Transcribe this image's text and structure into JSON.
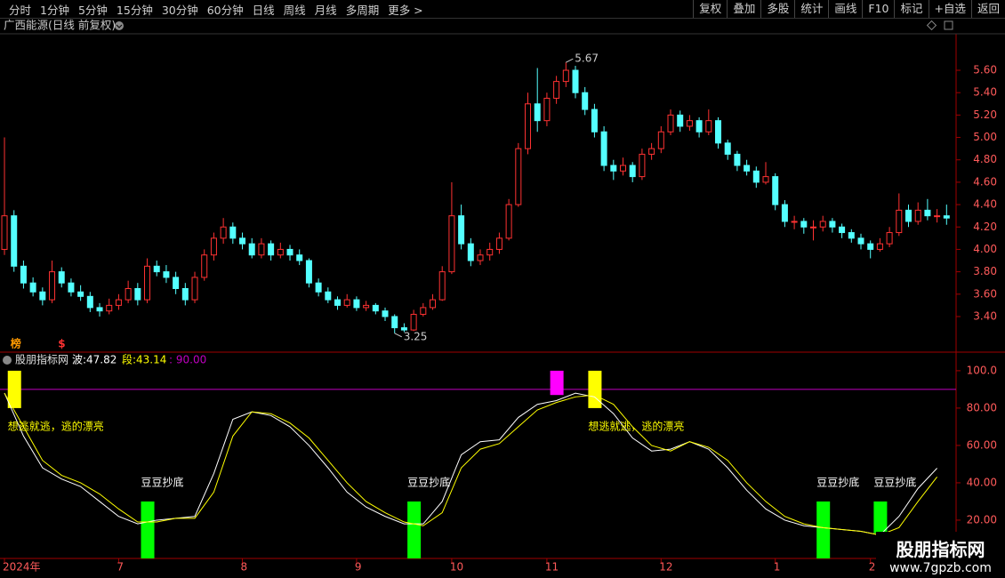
{
  "toolbar": {
    "periods": [
      "分时",
      "1分钟",
      "5分钟",
      "15分钟",
      "30分钟",
      "60分钟",
      "日线",
      "周线",
      "月线",
      "多周期",
      "更多 >"
    ],
    "tools": [
      "复权",
      "叠加",
      "多股",
      "统计",
      "画线",
      "F10",
      "标记",
      "+自选",
      "返回"
    ]
  },
  "watermark": {
    "title": "股朋指标网",
    "url": "www.7gpzb.com"
  },
  "chart_data": [
    {
      "type": "candlestick",
      "title": "广西能源(日线 前复权)",
      "up_color": "#ff3232",
      "down_color": "#54ffff",
      "xlim": [
        -0.47,
        100
      ],
      "ylim": [
        3.09,
        5.91
      ],
      "xticks": [
        {
          "value": 0,
          "label": "2024年"
        },
        {
          "value": 12,
          "label": "7"
        },
        {
          "value": 25,
          "label": "8"
        },
        {
          "value": 37,
          "label": "9"
        },
        {
          "value": 47,
          "label": "10"
        },
        {
          "value": 57,
          "label": "11"
        },
        {
          "value": 69,
          "label": "12"
        },
        {
          "value": 81,
          "label": "1"
        },
        {
          "value": 91,
          "label": "2"
        }
      ],
      "yticks": [
        {
          "value": 3.4,
          "label": "3.40"
        },
        {
          "value": 3.6,
          "label": "3.60"
        },
        {
          "value": 3.8,
          "label": "3.80"
        },
        {
          "value": 4,
          "label": "4.00"
        },
        {
          "value": 4.2,
          "label": "4.20"
        },
        {
          "value": 4.4,
          "label": "4.40"
        },
        {
          "value": 4.6,
          "label": "4.60"
        },
        {
          "value": 4.8,
          "label": "4.80"
        },
        {
          "value": 5,
          "label": "5.00"
        },
        {
          "value": 5.2,
          "label": "5.20"
        },
        {
          "value": 5.4,
          "label": "5.40"
        },
        {
          "value": 5.6,
          "label": "5.60"
        }
      ],
      "candles": [
        [
          4.0,
          5.0,
          3.95,
          4.3
        ],
        [
          4.3,
          4.35,
          3.8,
          3.85
        ],
        [
          3.85,
          3.9,
          3.65,
          3.7
        ],
        [
          3.7,
          3.75,
          3.58,
          3.62
        ],
        [
          3.62,
          3.66,
          3.5,
          3.55
        ],
        [
          3.55,
          3.9,
          3.52,
          3.8
        ],
        [
          3.8,
          3.84,
          3.66,
          3.7
        ],
        [
          3.7,
          3.74,
          3.58,
          3.62
        ],
        [
          3.62,
          3.68,
          3.54,
          3.58
        ],
        [
          3.58,
          3.62,
          3.44,
          3.48
        ],
        [
          3.48,
          3.52,
          3.4,
          3.45
        ],
        [
          3.45,
          3.56,
          3.42,
          3.5
        ],
        [
          3.5,
          3.6,
          3.46,
          3.55
        ],
        [
          3.55,
          3.72,
          3.52,
          3.65
        ],
        [
          3.65,
          3.7,
          3.5,
          3.55
        ],
        [
          3.55,
          3.92,
          3.52,
          3.85
        ],
        [
          3.85,
          3.9,
          3.76,
          3.8
        ],
        [
          3.8,
          3.86,
          3.7,
          3.75
        ],
        [
          3.75,
          3.8,
          3.6,
          3.65
        ],
        [
          3.65,
          3.7,
          3.5,
          3.55
        ],
        [
          3.55,
          3.8,
          3.52,
          3.75
        ],
        [
          3.75,
          4.0,
          3.72,
          3.95
        ],
        [
          3.95,
          4.15,
          3.9,
          4.1
        ],
        [
          4.1,
          4.28,
          4.05,
          4.2
        ],
        [
          4.2,
          4.24,
          4.05,
          4.1
        ],
        [
          4.1,
          4.15,
          4.0,
          4.05
        ],
        [
          4.05,
          4.1,
          3.92,
          3.95
        ],
        [
          3.95,
          4.1,
          3.92,
          4.05
        ],
        [
          4.05,
          4.08,
          3.9,
          3.95
        ],
        [
          3.95,
          4.06,
          3.92,
          4.0
        ],
        [
          4.0,
          4.04,
          3.9,
          3.95
        ],
        [
          3.95,
          4.0,
          3.86,
          3.9
        ],
        [
          3.9,
          3.92,
          3.66,
          3.7
        ],
        [
          3.7,
          3.74,
          3.58,
          3.62
        ],
        [
          3.62,
          3.66,
          3.52,
          3.55
        ],
        [
          3.55,
          3.58,
          3.46,
          3.5
        ],
        [
          3.5,
          3.6,
          3.48,
          3.55
        ],
        [
          3.55,
          3.58,
          3.45,
          3.48
        ],
        [
          3.48,
          3.54,
          3.45,
          3.5
        ],
        [
          3.5,
          3.52,
          3.42,
          3.45
        ],
        [
          3.45,
          3.48,
          3.36,
          3.4
        ],
        [
          3.4,
          3.42,
          3.25,
          3.3
        ],
        [
          3.3,
          3.34,
          3.26,
          3.28
        ],
        [
          3.28,
          3.46,
          3.27,
          3.42
        ],
        [
          3.42,
          3.52,
          3.4,
          3.48
        ],
        [
          3.48,
          3.6,
          3.46,
          3.55
        ],
        [
          3.55,
          3.85,
          3.54,
          3.8
        ],
        [
          3.8,
          4.6,
          3.78,
          4.3
        ],
        [
          4.3,
          4.4,
          4.0,
          4.05
        ],
        [
          4.05,
          4.1,
          3.85,
          3.9
        ],
        [
          3.9,
          4.0,
          3.86,
          3.95
        ],
        [
          3.95,
          4.06,
          3.9,
          4.0
        ],
        [
          4.0,
          4.15,
          3.96,
          4.1
        ],
        [
          4.1,
          4.45,
          4.08,
          4.4
        ],
        [
          4.4,
          4.95,
          4.38,
          4.9
        ],
        [
          4.9,
          5.4,
          4.85,
          5.3
        ],
        [
          5.3,
          5.62,
          5.05,
          5.15
        ],
        [
          5.15,
          5.4,
          5.1,
          5.35
        ],
        [
          5.35,
          5.55,
          5.3,
          5.5
        ],
        [
          5.5,
          5.67,
          5.45,
          5.6
        ],
        [
          5.6,
          5.64,
          5.35,
          5.4
        ],
        [
          5.4,
          5.45,
          5.2,
          5.25
        ],
        [
          5.25,
          5.3,
          5.0,
          5.05
        ],
        [
          5.05,
          5.1,
          4.7,
          4.75
        ],
        [
          4.75,
          4.8,
          4.62,
          4.7
        ],
        [
          4.7,
          4.82,
          4.66,
          4.75
        ],
        [
          4.75,
          4.78,
          4.6,
          4.65
        ],
        [
          4.65,
          4.9,
          4.62,
          4.85
        ],
        [
          4.85,
          4.95,
          4.8,
          4.9
        ],
        [
          4.9,
          5.1,
          4.86,
          5.05
        ],
        [
          5.05,
          5.25,
          5.02,
          5.2
        ],
        [
          5.2,
          5.24,
          5.05,
          5.1
        ],
        [
          5.1,
          5.2,
          5.06,
          5.15
        ],
        [
          5.15,
          5.18,
          5.0,
          5.05
        ],
        [
          5.05,
          5.25,
          5.02,
          5.15
        ],
        [
          5.15,
          5.18,
          4.9,
          4.95
        ],
        [
          4.95,
          4.98,
          4.8,
          4.85
        ],
        [
          4.85,
          4.88,
          4.7,
          4.75
        ],
        [
          4.75,
          4.8,
          4.66,
          4.7
        ],
        [
          4.7,
          4.74,
          4.55,
          4.6
        ],
        [
          4.6,
          4.78,
          4.58,
          4.65
        ],
        [
          4.65,
          4.68,
          4.35,
          4.4
        ],
        [
          4.4,
          4.44,
          4.2,
          4.25
        ],
        [
          4.25,
          4.3,
          4.18,
          4.25
        ],
        [
          4.25,
          4.28,
          4.14,
          4.2
        ],
        [
          4.2,
          4.26,
          4.08,
          4.2
        ],
        [
          4.2,
          4.3,
          4.16,
          4.25
        ],
        [
          4.25,
          4.28,
          4.15,
          4.2
        ],
        [
          4.2,
          4.23,
          4.1,
          4.15
        ],
        [
          4.15,
          4.18,
          4.06,
          4.1
        ],
        [
          4.1,
          4.14,
          4.0,
          4.05
        ],
        [
          4.05,
          4.08,
          3.92,
          4.0
        ],
        [
          4.0,
          4.1,
          3.98,
          4.05
        ],
        [
          4.05,
          4.2,
          4.02,
          4.15
        ],
        [
          4.15,
          4.5,
          4.12,
          4.35
        ],
        [
          4.35,
          4.4,
          4.2,
          4.25
        ],
        [
          4.25,
          4.42,
          4.22,
          4.35
        ],
        [
          4.35,
          4.45,
          4.26,
          4.3
        ],
        [
          4.3,
          4.36,
          4.24,
          4.3
        ],
        [
          4.3,
          4.4,
          4.22,
          4.28
        ]
      ],
      "markers": [
        {
          "x": 1,
          "text": "榜",
          "color": "#ff9900"
        },
        {
          "x": 6,
          "text": "$",
          "color": "#ff3232"
        }
      ]
    },
    {
      "type": "line",
      "title": "股朋指标网",
      "xlim": [
        -0.47,
        100
      ],
      "ylim": [
        -0.5,
        109
      ],
      "yticks": [
        {
          "value": 20,
          "label": "20.00"
        },
        {
          "value": 40,
          "label": "40.00"
        },
        {
          "value": 60,
          "label": "60.00"
        },
        {
          "value": 80,
          "label": "80.00"
        },
        {
          "value": 100,
          "label": "100.0"
        }
      ],
      "x": [
        0,
        2,
        4,
        6,
        8,
        10,
        12,
        14,
        16,
        18,
        20,
        22,
        24,
        26,
        28,
        30,
        32,
        34,
        36,
        38,
        40,
        42,
        44,
        46,
        48,
        50,
        52,
        54,
        56,
        58,
        60,
        62,
        64,
        66,
        68,
        70,
        72,
        74,
        76,
        78,
        80,
        82,
        84,
        86,
        88,
        90,
        92,
        94,
        96,
        98
      ],
      "series": [
        {
          "name": "波:",
          "color": "#ffffff",
          "values": [
            88,
            65,
            48,
            42,
            38,
            30,
            22,
            18,
            20,
            21,
            22,
            45,
            74,
            78,
            76,
            70,
            60,
            48,
            35,
            27,
            22,
            18,
            18,
            30,
            55,
            62,
            63,
            75,
            82,
            84,
            88,
            86,
            77,
            64,
            57,
            58,
            62,
            58,
            48,
            36,
            26,
            20,
            17,
            16,
            15,
            14,
            12,
            22,
            37,
            47.82
          ]
        },
        {
          "name": "段:",
          "color": "#ffff00",
          "values": [
            88,
            70,
            52,
            44,
            40,
            34,
            26,
            19,
            19,
            21,
            21,
            35,
            65,
            78,
            77,
            72,
            64,
            52,
            40,
            30,
            24,
            19,
            17,
            24,
            48,
            58,
            61,
            70,
            79,
            83,
            86,
            87,
            82,
            70,
            60,
            57,
            62,
            59,
            52,
            40,
            30,
            22,
            18,
            16,
            15,
            14,
            12,
            16,
            30,
            43.14
          ]
        }
      ],
      "reference_line": {
        "value": 90,
        "label": ": 90.00",
        "color": "#c000c0"
      },
      "signals": [
        {
          "x": 1,
          "low": 80,
          "high": 100,
          "color": "#ffff00"
        },
        {
          "x": 58,
          "low": 87,
          "high": 100,
          "color": "#ff00ff"
        },
        {
          "x": 62,
          "low": 80,
          "high": 100,
          "color": "#ffff00"
        },
        {
          "x": 15,
          "low": -0.5,
          "high": 30,
          "color": "#00ff00"
        },
        {
          "x": 43,
          "low": -0.5,
          "high": 30,
          "color": "#00ff00"
        },
        {
          "x": 86,
          "low": -0.5,
          "high": 30,
          "color": "#00ff00"
        },
        {
          "x": 92,
          "low": 13,
          "high": 30,
          "color": "#00ff00"
        }
      ],
      "annotations": [
        {
          "x": 1,
          "y": 70,
          "text": "想逃就逃，逃的漂亮",
          "color": "#ffff00"
        },
        {
          "x": 62,
          "y": 70,
          "text": "想逃就逃，逃的漂亮",
          "color": "#ffff00"
        },
        {
          "x": 15,
          "y": 40,
          "text": "豆豆抄底",
          "color": "#ffffff"
        },
        {
          "x": 43,
          "y": 40,
          "text": "豆豆抄底",
          "color": "#ffffff"
        },
        {
          "x": 86,
          "y": 40,
          "text": "豆豆抄底",
          "color": "#ffffff"
        },
        {
          "x": 92,
          "y": 40,
          "text": "豆豆抄底",
          "color": "#ffffff"
        }
      ]
    }
  ]
}
